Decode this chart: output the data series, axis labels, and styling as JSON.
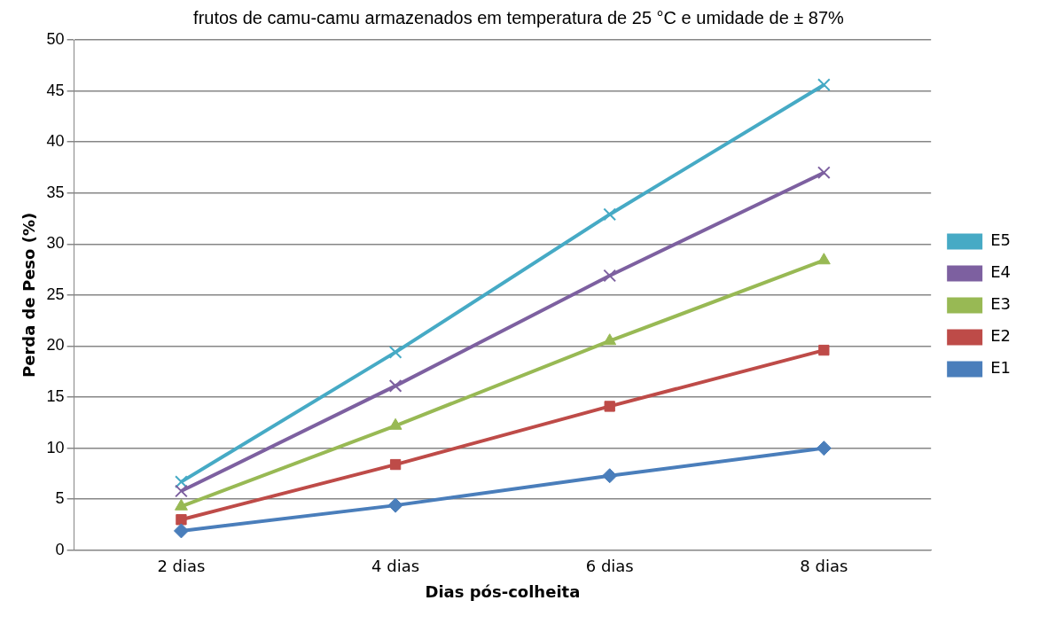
{
  "chart_data": {
    "type": "line",
    "title": "frutos de camu-camu armazenados em temperatura de 25 °C e umidade de ± 87%",
    "xlabel": "Dias pós-colheita",
    "ylabel": "Perda de Peso (%)",
    "categories": [
      "2 dias",
      "4 dias",
      "6 dias",
      "8 dias"
    ],
    "series": [
      {
        "name": "E1",
        "color": "#4a7ebb",
        "marker": "diamond",
        "values": [
          1.9,
          4.4,
          7.3,
          10.0
        ]
      },
      {
        "name": "E2",
        "color": "#be4b48",
        "marker": "square",
        "values": [
          3.0,
          8.4,
          14.1,
          19.6
        ]
      },
      {
        "name": "E3",
        "color": "#98b954",
        "marker": "triangle",
        "values": [
          4.3,
          12.2,
          20.5,
          28.4
        ]
      },
      {
        "name": "E4",
        "color": "#7d60a0",
        "marker": "cross",
        "values": [
          5.8,
          16.1,
          26.9,
          37.0
        ]
      },
      {
        "name": "E5",
        "color": "#46aac5",
        "marker": "cross",
        "values": [
          6.7,
          19.4,
          32.9,
          45.6
        ]
      }
    ],
    "ylim": [
      0,
      50
    ],
    "yticks": [
      0,
      5,
      10,
      15,
      20,
      25,
      30,
      35,
      40,
      45,
      50
    ],
    "grid": "y",
    "legend": "right",
    "line_style": "solid"
  }
}
